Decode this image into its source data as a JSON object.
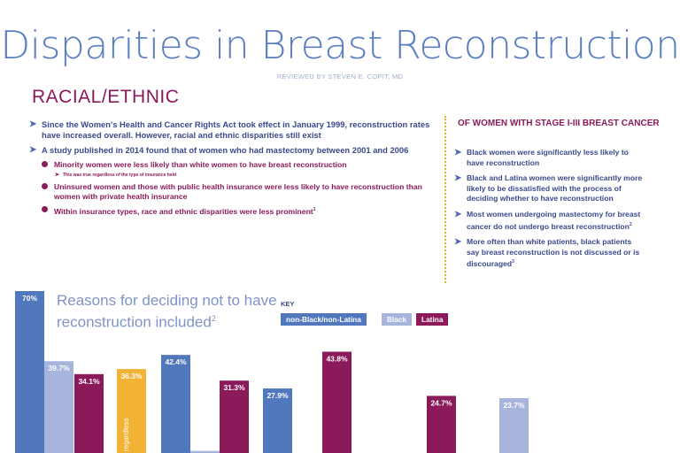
{
  "header": {
    "title": "Disparities in Breast Reconstruction",
    "reviewed_by": "REVIEWED BY STEVEN E. COPIT, MD"
  },
  "section_title": "RACIAL/ETHNIC",
  "bullets": {
    "b1": "Since the Women's Health and Cancer Rights Act took effect in January 1999, reconstruction rates have increased overall. However, racial and ethnic disparities still exist",
    "b2": "A study published in 2014 found that of women who had mastectomy between 2001 and 2006",
    "b2a": "Minority women were less likely than white women to have breast reconstruction",
    "b2a_note": "This was true regardless of the type of insurance held",
    "b2b": "Uninsured women and those with public health insurance were less likely to have reconstruction than women with private health insurance",
    "b2c": "Within insurance types, race and ethnic disparities were less prominent",
    "b2c_sup": "1"
  },
  "right_panel": {
    "heading": "OF WOMEN WITH STAGE I-III BREAST CANCER",
    "items": [
      {
        "text": "Black women were significantly less likely to have reconstruction",
        "sup": ""
      },
      {
        "text": "Black and Latina women were significantly more likely to be dissatisfied with the process of deciding whether to have reconstruction",
        "sup": ""
      },
      {
        "text": "Most women undergoing mastectomy for breast cancer do not undergo breast reconstruction",
        "sup": "2"
      },
      {
        "text": "More often than white patients, black patients say breast reconstruction is not discussed or is discouraged",
        "sup": "3"
      }
    ]
  },
  "chart": {
    "title": "Reasons for deciding not to have reconstruction included",
    "title_sup": "2",
    "key_label": "KEY",
    "key_items": [
      "non-Black/non-Latina",
      "Black",
      "Latina"
    ],
    "partial_label": "regardless"
  },
  "colors": {
    "non_black_non_latina": "#5177bd",
    "black": "#a7b4dc",
    "latina": "#8a1a5a",
    "highlight": "#f2b233"
  },
  "chart_data": {
    "type": "bar",
    "title": "Reasons for deciding not to have reconstruction included",
    "series_names": [
      "non-Black/non-Latina",
      "Black",
      "Latina"
    ],
    "bars": [
      {
        "series": "non-Black/non-Latina",
        "value": 70,
        "label": "70%"
      },
      {
        "series": "Black",
        "value": 39.7,
        "label": "39.7%"
      },
      {
        "series": "Latina",
        "value": 34.1,
        "label": "34.1%"
      },
      {
        "series": "highlight",
        "value": 36.3,
        "label": "36.3%"
      },
      {
        "series": "non-Black/non-Latina",
        "value": 42.4,
        "label": "42.4%"
      },
      {
        "series": "Black",
        "value": 0.9,
        "label": ""
      },
      {
        "series": "Latina",
        "value": 31.3,
        "label": "31.3%"
      },
      {
        "series": "non-Black/non-Latina",
        "value": 27.9,
        "label": "27.9%"
      },
      {
        "series": "Latina",
        "value": 43.8,
        "label": "43.8%"
      },
      {
        "series": "Latina",
        "value": 24.7,
        "label": "24.7%"
      },
      {
        "series": "Black",
        "value": 23.7,
        "label": "23.7%"
      }
    ]
  }
}
